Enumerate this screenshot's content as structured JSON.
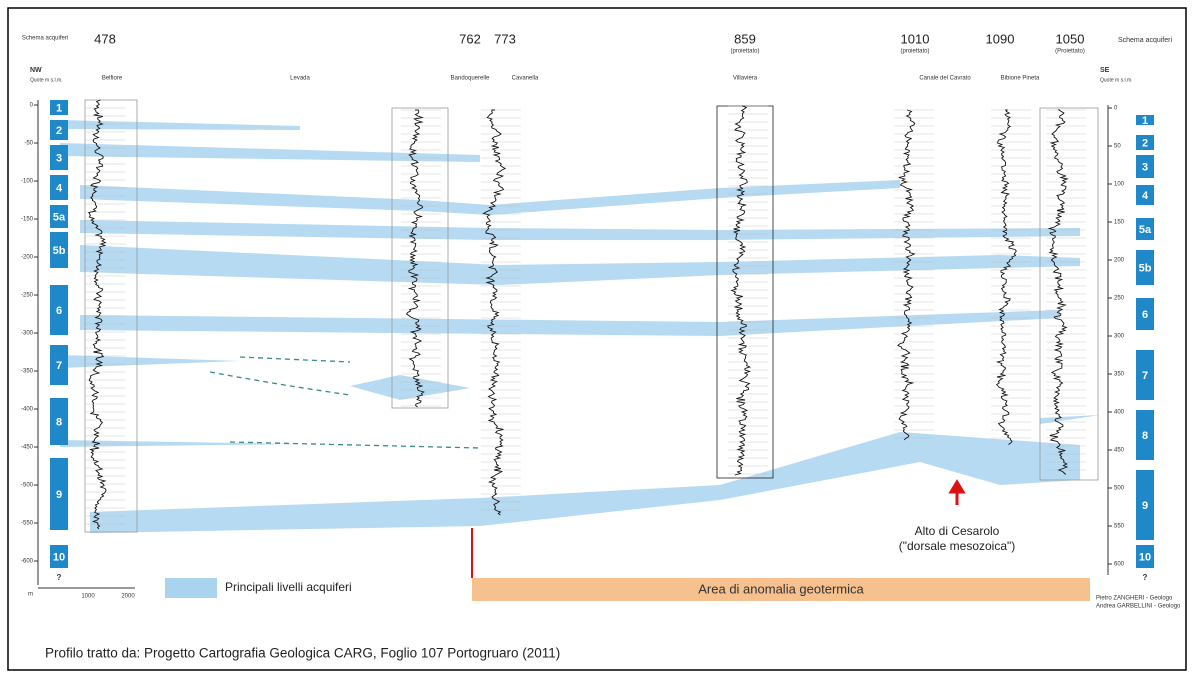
{
  "header": {
    "left_schema": "Schema acquiferi",
    "left_dir": "NW",
    "left_quote": "Quote m s.l.m.",
    "right_schema": "Schema acquiferi",
    "right_dir": "SE",
    "right_quote": "Quote m s.l.m."
  },
  "wells": [
    {
      "number": "478",
      "note": null,
      "name": "Belfiore"
    },
    {
      "number": null,
      "note": null,
      "name": "Levada"
    },
    {
      "number": "762",
      "note": null,
      "name": "Bandoquerelle"
    },
    {
      "number": "773",
      "note": null,
      "name": "Cavanella"
    },
    {
      "number": "859",
      "note": "(proiettato)",
      "name": "Villaviera"
    },
    {
      "number": "1010",
      "note": "(proiettato)",
      "name": "Canale del Cavrato"
    },
    {
      "number": "1090",
      "note": null,
      "name": "Bibione Pineta"
    },
    {
      "number": "1050",
      "note": "(Proiettato)",
      "name": null
    }
  ],
  "left_depths": [
    "0",
    "-50",
    "-100",
    "-150",
    "-200",
    "-250",
    "-300",
    "-350",
    "-400",
    "-450",
    "-500",
    "-550",
    "-600"
  ],
  "right_depths": [
    "0",
    "50",
    "100",
    "150",
    "200",
    "250",
    "300",
    "350",
    "400",
    "450",
    "500",
    "550",
    "600"
  ],
  "aquifers": [
    "1",
    "2",
    "3",
    "4",
    "5a",
    "5b",
    "6",
    "7",
    "8",
    "9",
    "10"
  ],
  "unknown": "?",
  "scale": {
    "unit": "m",
    "labels": [
      "1000",
      "2000"
    ]
  },
  "legend": "Principali livelli acquiferi",
  "anomaly": "Area di anomalia geotermica",
  "high": {
    "title": "Alto di Cesarolo",
    "subtitle": "(\"dorsale mesozoica\")"
  },
  "credits": [
    "Pietro ZANGHERI - Geologo",
    "Andrea GARBELLINI - Geologo"
  ],
  "caption": "Profilo tratto da: Progetto Cartografia Geologica CARG, Foglio 107 Portogruaro (2011)"
}
